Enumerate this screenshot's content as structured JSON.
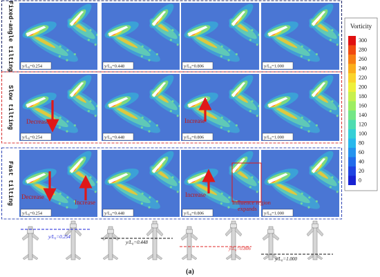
{
  "rows": [
    {
      "label": "Fixed-angle tilting",
      "frame_color": "#1f2a6b"
    },
    {
      "label": "Slow tilting",
      "frame_color": "#d83a3a"
    },
    {
      "label": "Fast tilting",
      "frame_color": "#3a4fb8"
    }
  ],
  "position_labels": [
    "y/L₀=0.254",
    "y/L₀=0.448",
    "y/L₀=0.806",
    "y/L₀=1.000"
  ],
  "annotations": {
    "slow_decrease": "Decrease",
    "slow_increase": "Increase",
    "fast_decrease": "Decrease",
    "fast_increase_1": "Increase",
    "fast_increase_2": "Increase",
    "influence_line1": "Influence region",
    "influence_line2": "expands"
  },
  "colorbar": {
    "title": "Vorticity",
    "ticks": [
      "300",
      "280",
      "260",
      "240",
      "220",
      "200",
      "180",
      "160",
      "140",
      "120",
      "100",
      "80",
      "60",
      "40",
      "20",
      "0"
    ],
    "colors": [
      "#e01010",
      "#f04a10",
      "#f77e14",
      "#fbae1c",
      "#fad42c",
      "#eef03c",
      "#c8f04e",
      "#9eee62",
      "#74e686",
      "#4fdcb0",
      "#35cfd6",
      "#28b8ec",
      "#2493ee",
      "#226ceb",
      "#1f44e2",
      "#1822d2"
    ]
  },
  "bottom_labels": [
    "y/L₀=0.254",
    "y/L₀=0.448",
    "y/L₀=0.806",
    "y/L₀=1.000"
  ],
  "bottom_line_colors": [
    "#1a22d8",
    "#111111",
    "#e02a2a",
    "#111111"
  ],
  "caption": "(a)",
  "colors": {
    "field_bg": "#4a76d4",
    "arrow": "#e01818",
    "annotation_text": "#c01818"
  }
}
